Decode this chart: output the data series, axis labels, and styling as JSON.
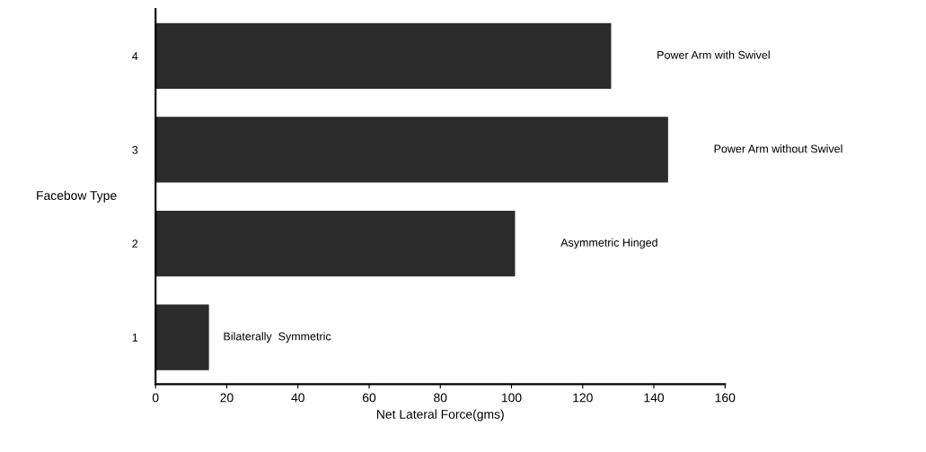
{
  "chart_data": {
    "type": "bar",
    "orientation": "horizontal",
    "xlabel": "Net Lateral Force(gms)",
    "ylabel": "Facebow Type",
    "categories": [
      "4",
      "3",
      "2",
      "1"
    ],
    "values": [
      128,
      144,
      101,
      15
    ],
    "color": "#2b2b2b",
    "xlim": [
      0,
      160
    ],
    "xticks": [
      0,
      20,
      40,
      60,
      80,
      100,
      120,
      140,
      160
    ],
    "grid": false,
    "annotations": [
      "Power Arm with Swivel",
      "Power Arm without Swivel",
      "Asymmetric Hinged",
      "Bilaterally  Symmetric"
    ]
  }
}
